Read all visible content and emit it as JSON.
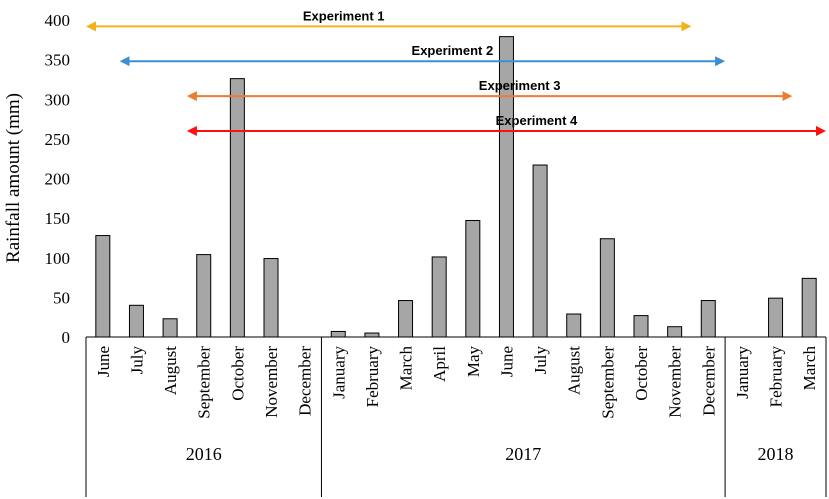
{
  "chart_data": {
    "type": "bar",
    "ylabel": "Rainfall amount (mm)",
    "xlabel": "",
    "ylim": [
      0,
      400
    ],
    "yticks": [
      0,
      50,
      100,
      150,
      200,
      250,
      300,
      350,
      400
    ],
    "categories": [
      "June",
      "July",
      "August",
      "September",
      "October",
      "November",
      "December",
      "January",
      "February",
      "March",
      "April",
      "May",
      "June",
      "July",
      "August",
      "September",
      "October",
      "November",
      "December",
      "January",
      "February",
      "March"
    ],
    "values": [
      128,
      40,
      23,
      104,
      326,
      99,
      0,
      7,
      5,
      46,
      101,
      147,
      379,
      217,
      29,
      124,
      27,
      13,
      46,
      0,
      49,
      74
    ],
    "years": [
      {
        "label": "2016",
        "start": 0,
        "end": 6
      },
      {
        "label": "2017",
        "start": 7,
        "end": 18
      },
      {
        "label": "2018",
        "start": 19,
        "end": 21
      }
    ],
    "experiments": [
      {
        "label": "Experiment 1",
        "start": 0,
        "end": 17,
        "color": "#f2b21c"
      },
      {
        "label": "Experiment 2",
        "start": 1,
        "end": 18,
        "color": "#3d8fd1"
      },
      {
        "label": "Experiment 3",
        "start": 3,
        "end": 20,
        "color": "#ec7d30"
      },
      {
        "label": "Experiment 4",
        "start": 3,
        "end": 21,
        "color": "#ff1010"
      }
    ],
    "bar_color": "#a6a6a6"
  }
}
